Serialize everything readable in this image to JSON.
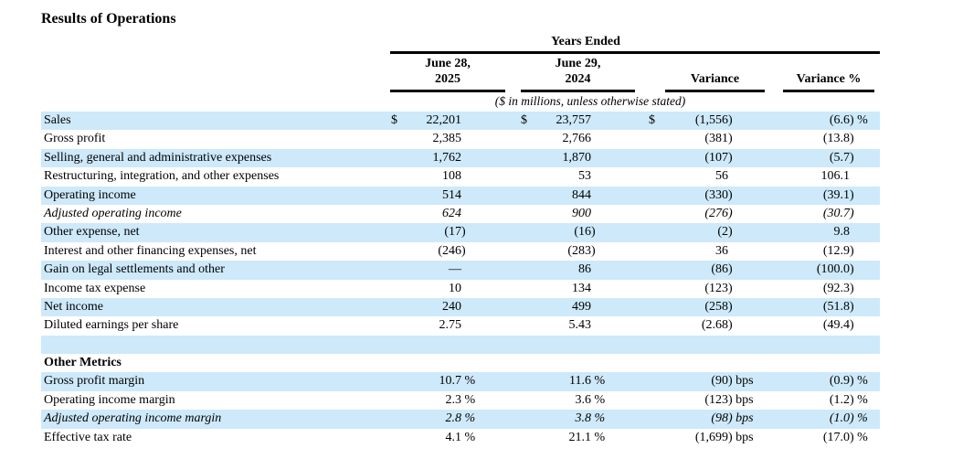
{
  "colors": {
    "highlight_row": "#cde9fa",
    "rule": "#000000",
    "text": "#000000"
  },
  "table": {
    "title": "Results of Operations",
    "header": {
      "group_label": "Years Ended",
      "note": "($ in millions, unless otherwise stated)",
      "col_2025_line1": "June 28,",
      "col_2025_line2": "2025",
      "col_2024_line1": "June 29,",
      "col_2024_line2": "2024",
      "col_variance": "Variance",
      "col_variance_pct": "Variance %"
    },
    "rows": [
      {
        "label": "Sales",
        "fy2025": "$ 22,201",
        "fy2024": "$ 23,757",
        "variance": "$ (1,556)",
        "variance_pct": "(6.6) %",
        "hl": true
      },
      {
        "label": "Gross profit",
        "fy2025": "2,385",
        "fy2024": "2,766",
        "variance": "(381)",
        "variance_pct": "(13.8)"
      },
      {
        "label": "Selling, general and administrative expenses",
        "fy2025": "1,762",
        "fy2024": "1,870",
        "variance": "(107)",
        "variance_pct": "(5.7)",
        "hl": true
      },
      {
        "label": "Restructuring, integration, and other expenses",
        "fy2025": "108",
        "fy2024": "53",
        "variance": "56",
        "variance_pct": "106.1"
      },
      {
        "label": "Operating income",
        "fy2025": "514",
        "fy2024": "844",
        "variance": "(330)",
        "variance_pct": "(39.1)",
        "hl": true
      },
      {
        "label": "Adjusted operating income",
        "fy2025": "624",
        "fy2024": "900",
        "variance": "(276)",
        "variance_pct": "(30.7)",
        "italic": true
      },
      {
        "label": "Other expense, net",
        "fy2025": "(17)",
        "fy2024": "(16)",
        "variance": "(2)",
        "variance_pct": "9.8",
        "hl": true
      },
      {
        "label": "Interest and other financing expenses, net",
        "fy2025": "(246)",
        "fy2024": "(283)",
        "variance": "36",
        "variance_pct": "(12.9)"
      },
      {
        "label": "Gain on legal settlements and other",
        "fy2025": "—",
        "fy2024": "86",
        "variance": "(86)",
        "variance_pct": "(100.0)",
        "hl": true
      },
      {
        "label": "Income tax expense",
        "fy2025": "10",
        "fy2024": "134",
        "variance": "(123)",
        "variance_pct": "(92.3)"
      },
      {
        "label": "Net income",
        "fy2025": "240",
        "fy2024": "499",
        "variance": "(258)",
        "variance_pct": "(51.8)",
        "hl": true
      },
      {
        "label": "Diluted earnings per share",
        "fy2025": "2.75",
        "fy2024": "5.43",
        "variance": "(2.68)",
        "variance_pct": "(49.4)"
      },
      {
        "blank": true,
        "hl": true
      },
      {
        "label": "Other Metrics",
        "bold": true
      },
      {
        "label": "Gross profit margin",
        "fy2025": "10.7 %",
        "fy2024": "11.6 %",
        "variance": "(90) bps",
        "variance_pct": "(0.9) %",
        "hl": true
      },
      {
        "label": "Operating income margin",
        "fy2025": "2.3 %",
        "fy2024": "3.6 %",
        "variance": "(123) bps",
        "variance_pct": "(1.2) %"
      },
      {
        "label": "Adjusted operating income margin",
        "fy2025": "2.8 %",
        "fy2024": "3.8 %",
        "variance": "(98) bps",
        "variance_pct": "(1.0) %",
        "hl": true,
        "italic": true
      },
      {
        "label": "Effective tax rate",
        "fy2025": "4.1 %",
        "fy2024": "21.1 %",
        "variance": "(1,699) bps",
        "variance_pct": "(17.0) %"
      }
    ]
  }
}
